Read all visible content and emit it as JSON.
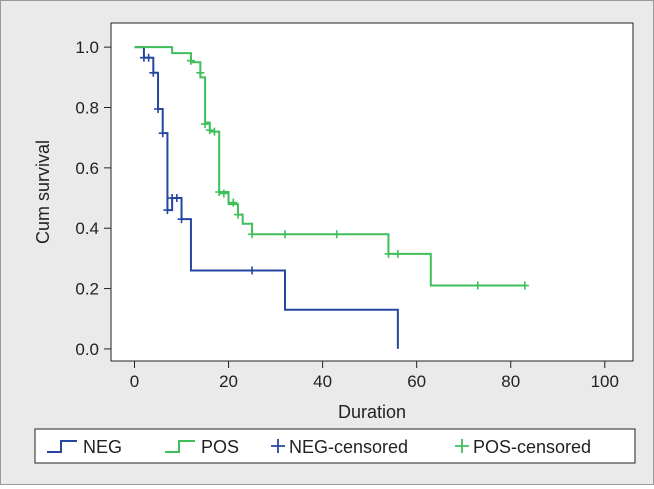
{
  "chart_data": {
    "type": "line",
    "subtype": "kaplan-meier-step",
    "xlabel": "Duration",
    "ylabel": "Cum survival",
    "xlim": [
      -5,
      106
    ],
    "ylim": [
      -0.04,
      1.08
    ],
    "xticks": [
      0,
      20,
      40,
      60,
      80,
      100
    ],
    "yticks": [
      0.0,
      0.2,
      0.4,
      0.6,
      0.8,
      1.0
    ],
    "xtick_labels": [
      "0",
      "20",
      "40",
      "60",
      "80",
      "100"
    ],
    "ytick_labels": [
      "0.0",
      "0.2",
      "0.4",
      "0.6",
      "0.8",
      "1.0"
    ],
    "grid": false,
    "legend_position": "bottom",
    "series": [
      {
        "name": "NEG",
        "color": "#2547a0",
        "steps": [
          [
            0,
            1.0
          ],
          [
            2,
            0.965
          ],
          [
            4,
            0.915
          ],
          [
            5,
            0.795
          ],
          [
            6,
            0.715
          ],
          [
            7,
            0.46
          ],
          [
            8,
            0.5
          ],
          [
            10,
            0.43
          ],
          [
            12,
            0.26
          ],
          [
            32,
            0.13
          ],
          [
            56,
            0.0
          ]
        ],
        "censored": [
          [
            2,
            0.965
          ],
          [
            3,
            0.965
          ],
          [
            4,
            0.915
          ],
          [
            5,
            0.795
          ],
          [
            6,
            0.715
          ],
          [
            7,
            0.46
          ],
          [
            8,
            0.5
          ],
          [
            9,
            0.5
          ],
          [
            10,
            0.43
          ],
          [
            25,
            0.26
          ]
        ]
      },
      {
        "name": "POS",
        "color": "#3fbf5a",
        "steps": [
          [
            0,
            1.0
          ],
          [
            8,
            0.98
          ],
          [
            12,
            0.95
          ],
          [
            14,
            0.9
          ],
          [
            15,
            0.75
          ],
          [
            16,
            0.72
          ],
          [
            17,
            0.72
          ],
          [
            18,
            0.52
          ],
          [
            20,
            0.48
          ],
          [
            22,
            0.445
          ],
          [
            23,
            0.415
          ],
          [
            25,
            0.38
          ],
          [
            54,
            0.315
          ],
          [
            63,
            0.21
          ],
          [
            83,
            0.21
          ]
        ],
        "censored": [
          [
            12,
            0.955
          ],
          [
            14,
            0.915
          ],
          [
            15,
            0.745
          ],
          [
            16,
            0.725
          ],
          [
            17,
            0.72
          ],
          [
            18,
            0.52
          ],
          [
            19,
            0.515
          ],
          [
            21,
            0.485
          ],
          [
            22,
            0.445
          ],
          [
            25,
            0.38
          ],
          [
            32,
            0.38
          ],
          [
            43,
            0.38
          ],
          [
            54,
            0.315
          ],
          [
            56,
            0.315
          ],
          [
            73,
            0.21
          ],
          [
            83,
            0.21
          ]
        ]
      }
    ],
    "legend": [
      {
        "label": "NEG",
        "kind": "step",
        "color": "#2547a0"
      },
      {
        "label": "POS",
        "kind": "step",
        "color": "#3fbf5a"
      },
      {
        "label": "NEG-censored",
        "kind": "cross",
        "color": "#2547a0"
      },
      {
        "label": "POS-censored",
        "kind": "cross",
        "color": "#3fbf5a"
      }
    ]
  }
}
